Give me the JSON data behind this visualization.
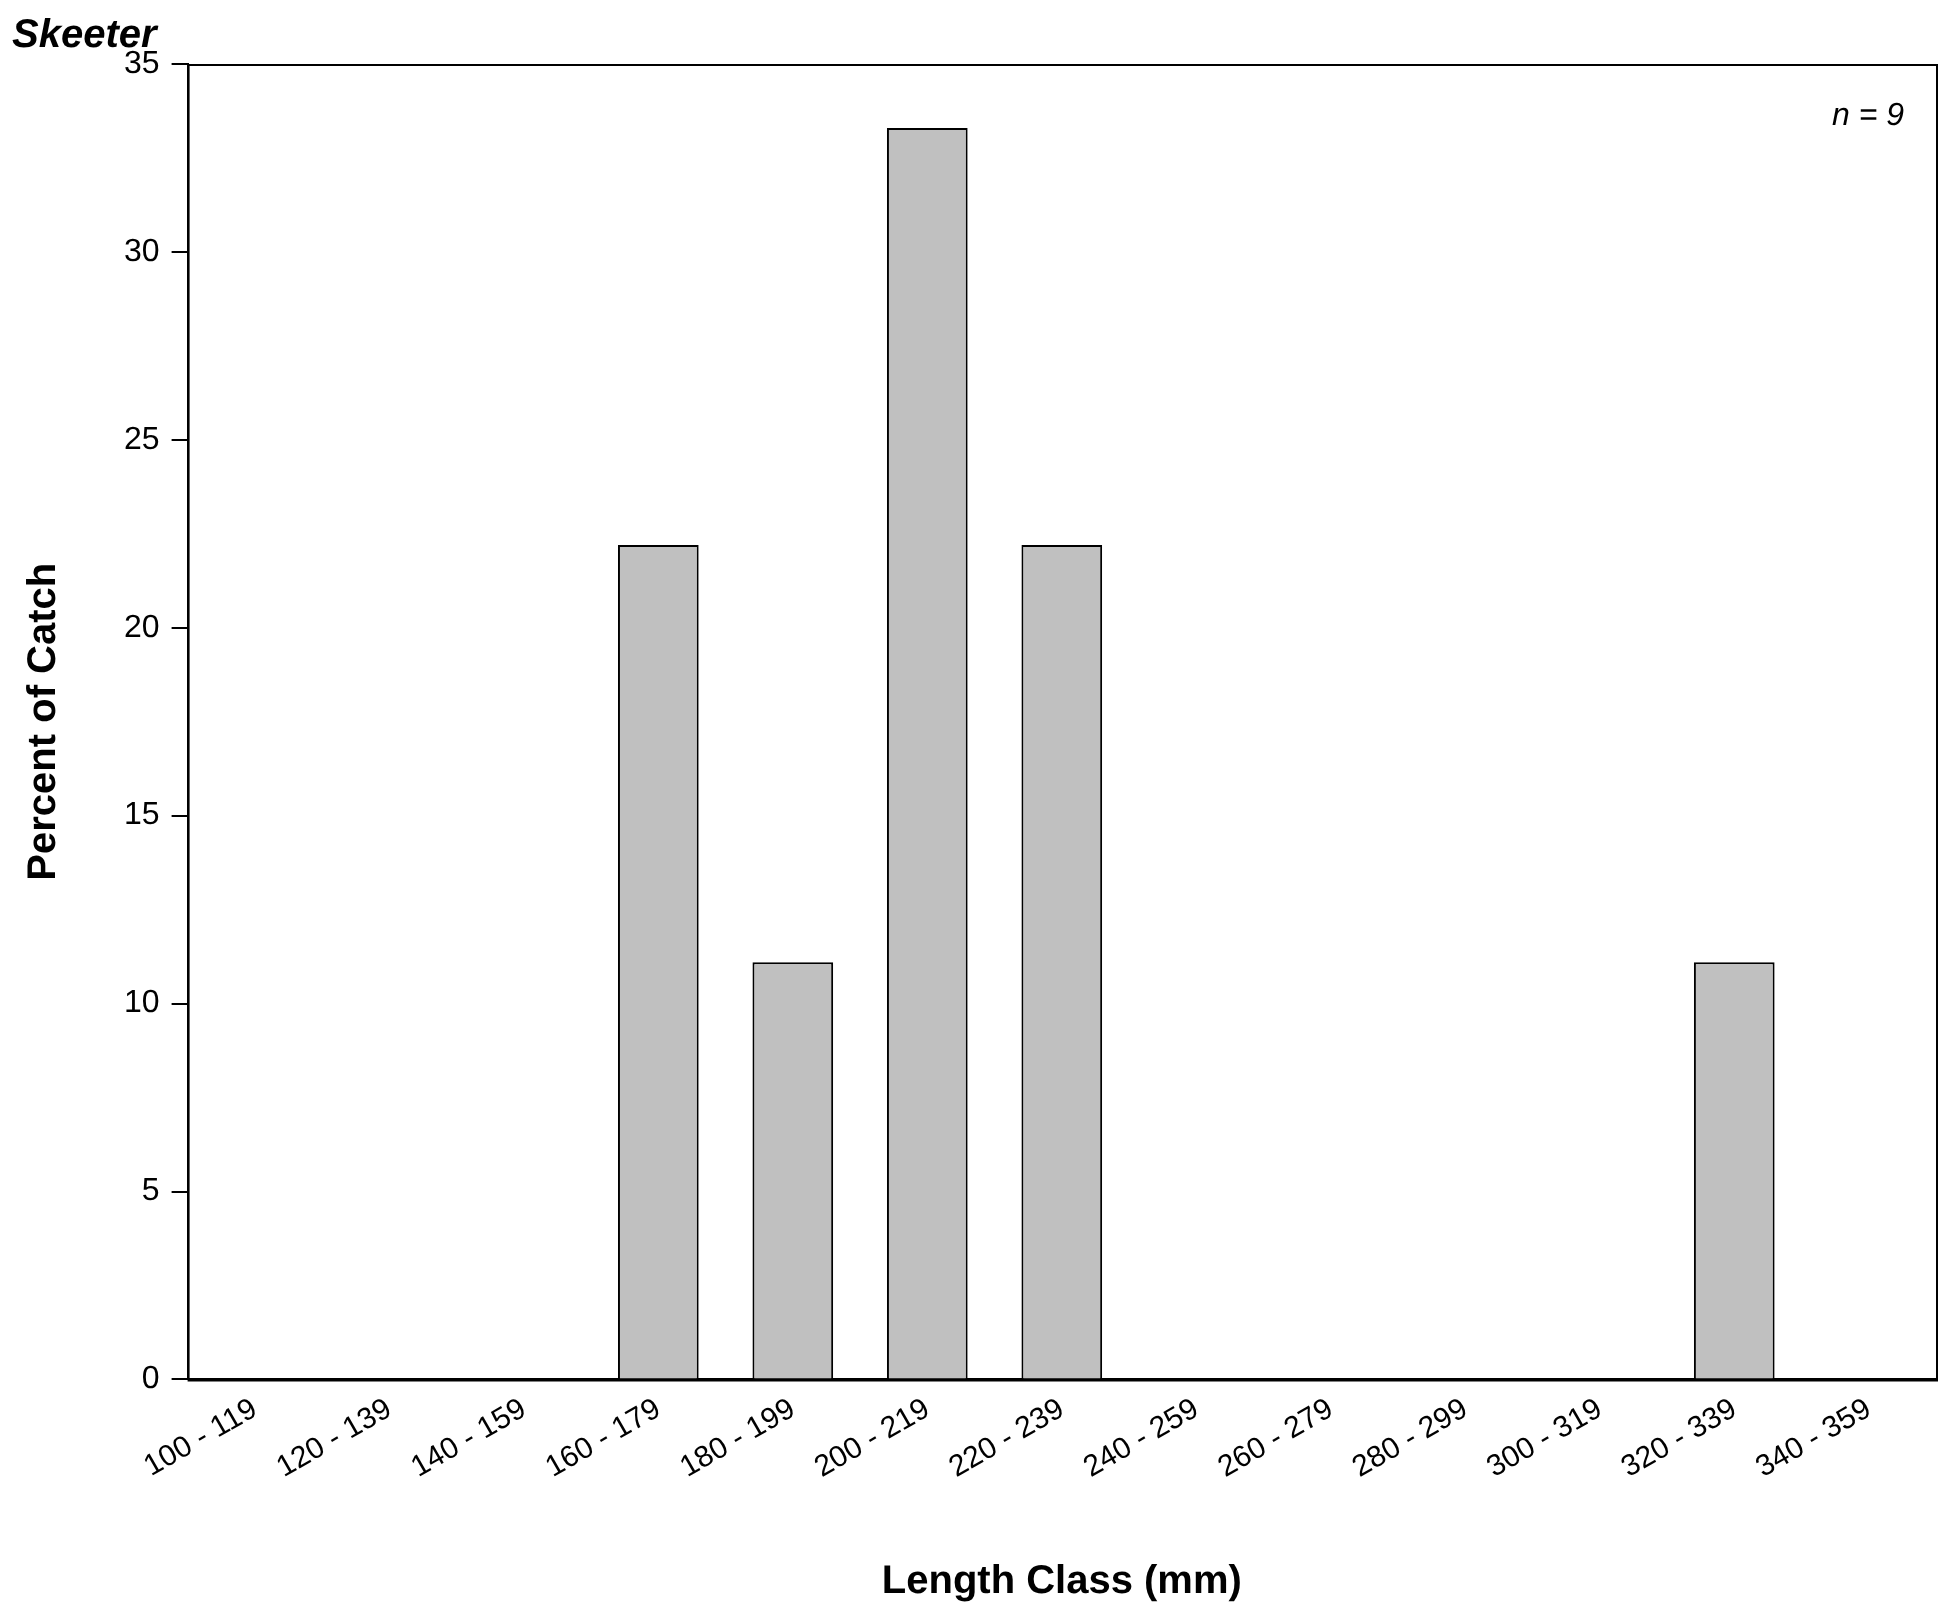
{
  "chart_data": {
    "type": "bar",
    "title": "Skeeter",
    "xlabel": "Length Class (mm)",
    "ylabel": "Percent of Catch",
    "annotations": [
      "n = 9"
    ],
    "categories": [
      "100 - 119",
      "120 - 139",
      "140 - 159",
      "160 - 179",
      "180 - 199",
      "200 - 219",
      "220 - 239",
      "240 - 259",
      "260 - 279",
      "280 - 299",
      "300 - 319",
      "320 - 339",
      "340 - 359"
    ],
    "values": [
      0,
      0,
      0,
      22.2,
      11.1,
      33.3,
      22.2,
      0,
      0,
      0,
      0,
      11.1,
      0
    ],
    "color": "#c0c0c0",
    "ylim": [
      0,
      35
    ],
    "yticks": [
      0,
      5,
      10,
      15,
      20,
      25,
      30,
      35
    ],
    "grid": false,
    "legend": false
  }
}
